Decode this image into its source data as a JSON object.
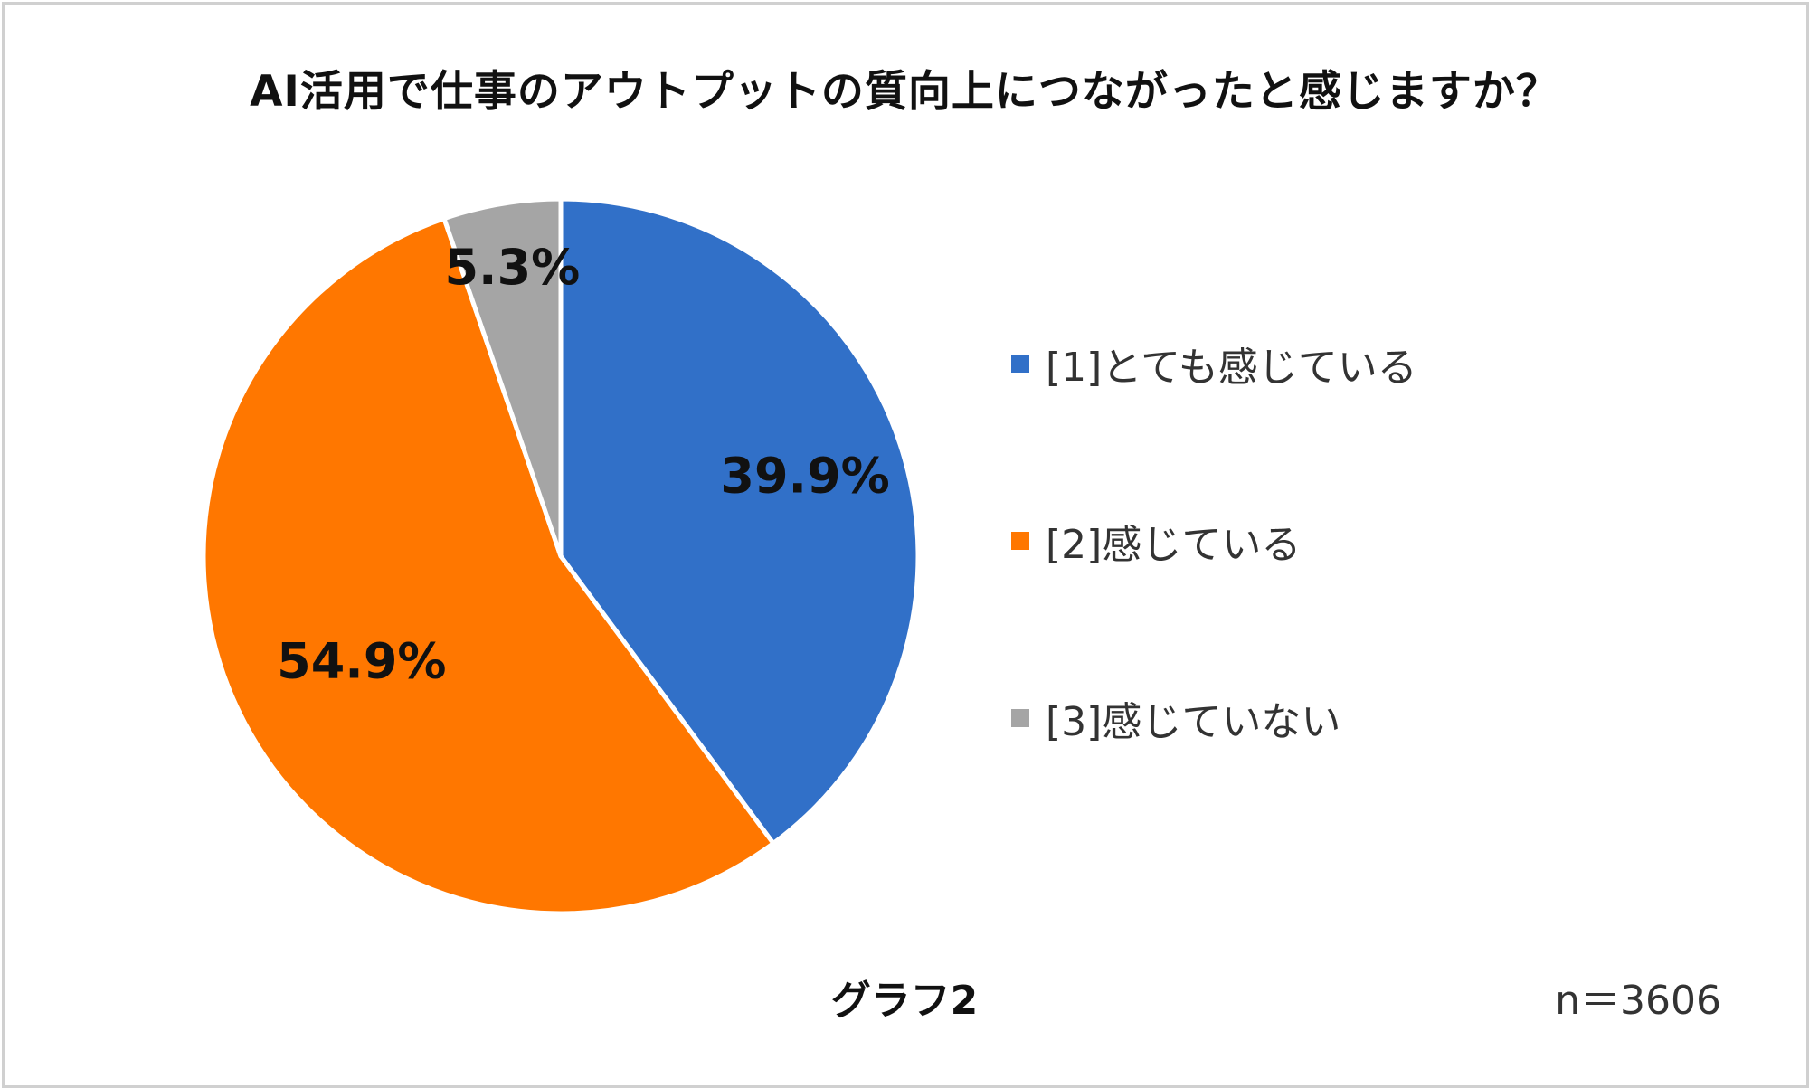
{
  "chart_data": {
    "type": "pie",
    "title": "AI活用で仕事のアウトプットの質向上につながったと感じますか？",
    "categories": [
      "[1]とても感じている",
      "[2]感じている",
      "[3]感じていない"
    ],
    "values": [
      39.9,
      54.9,
      5.3
    ],
    "value_labels": [
      "39.9%",
      "54.9%",
      "5.3%"
    ],
    "colors": [
      "#3170C8",
      "#FF7700",
      "#A5A5A5"
    ],
    "legend_position": "right",
    "start_angle": "12 o'clock, clockwise"
  },
  "caption": "グラフ2",
  "sample_size": "n＝3606"
}
